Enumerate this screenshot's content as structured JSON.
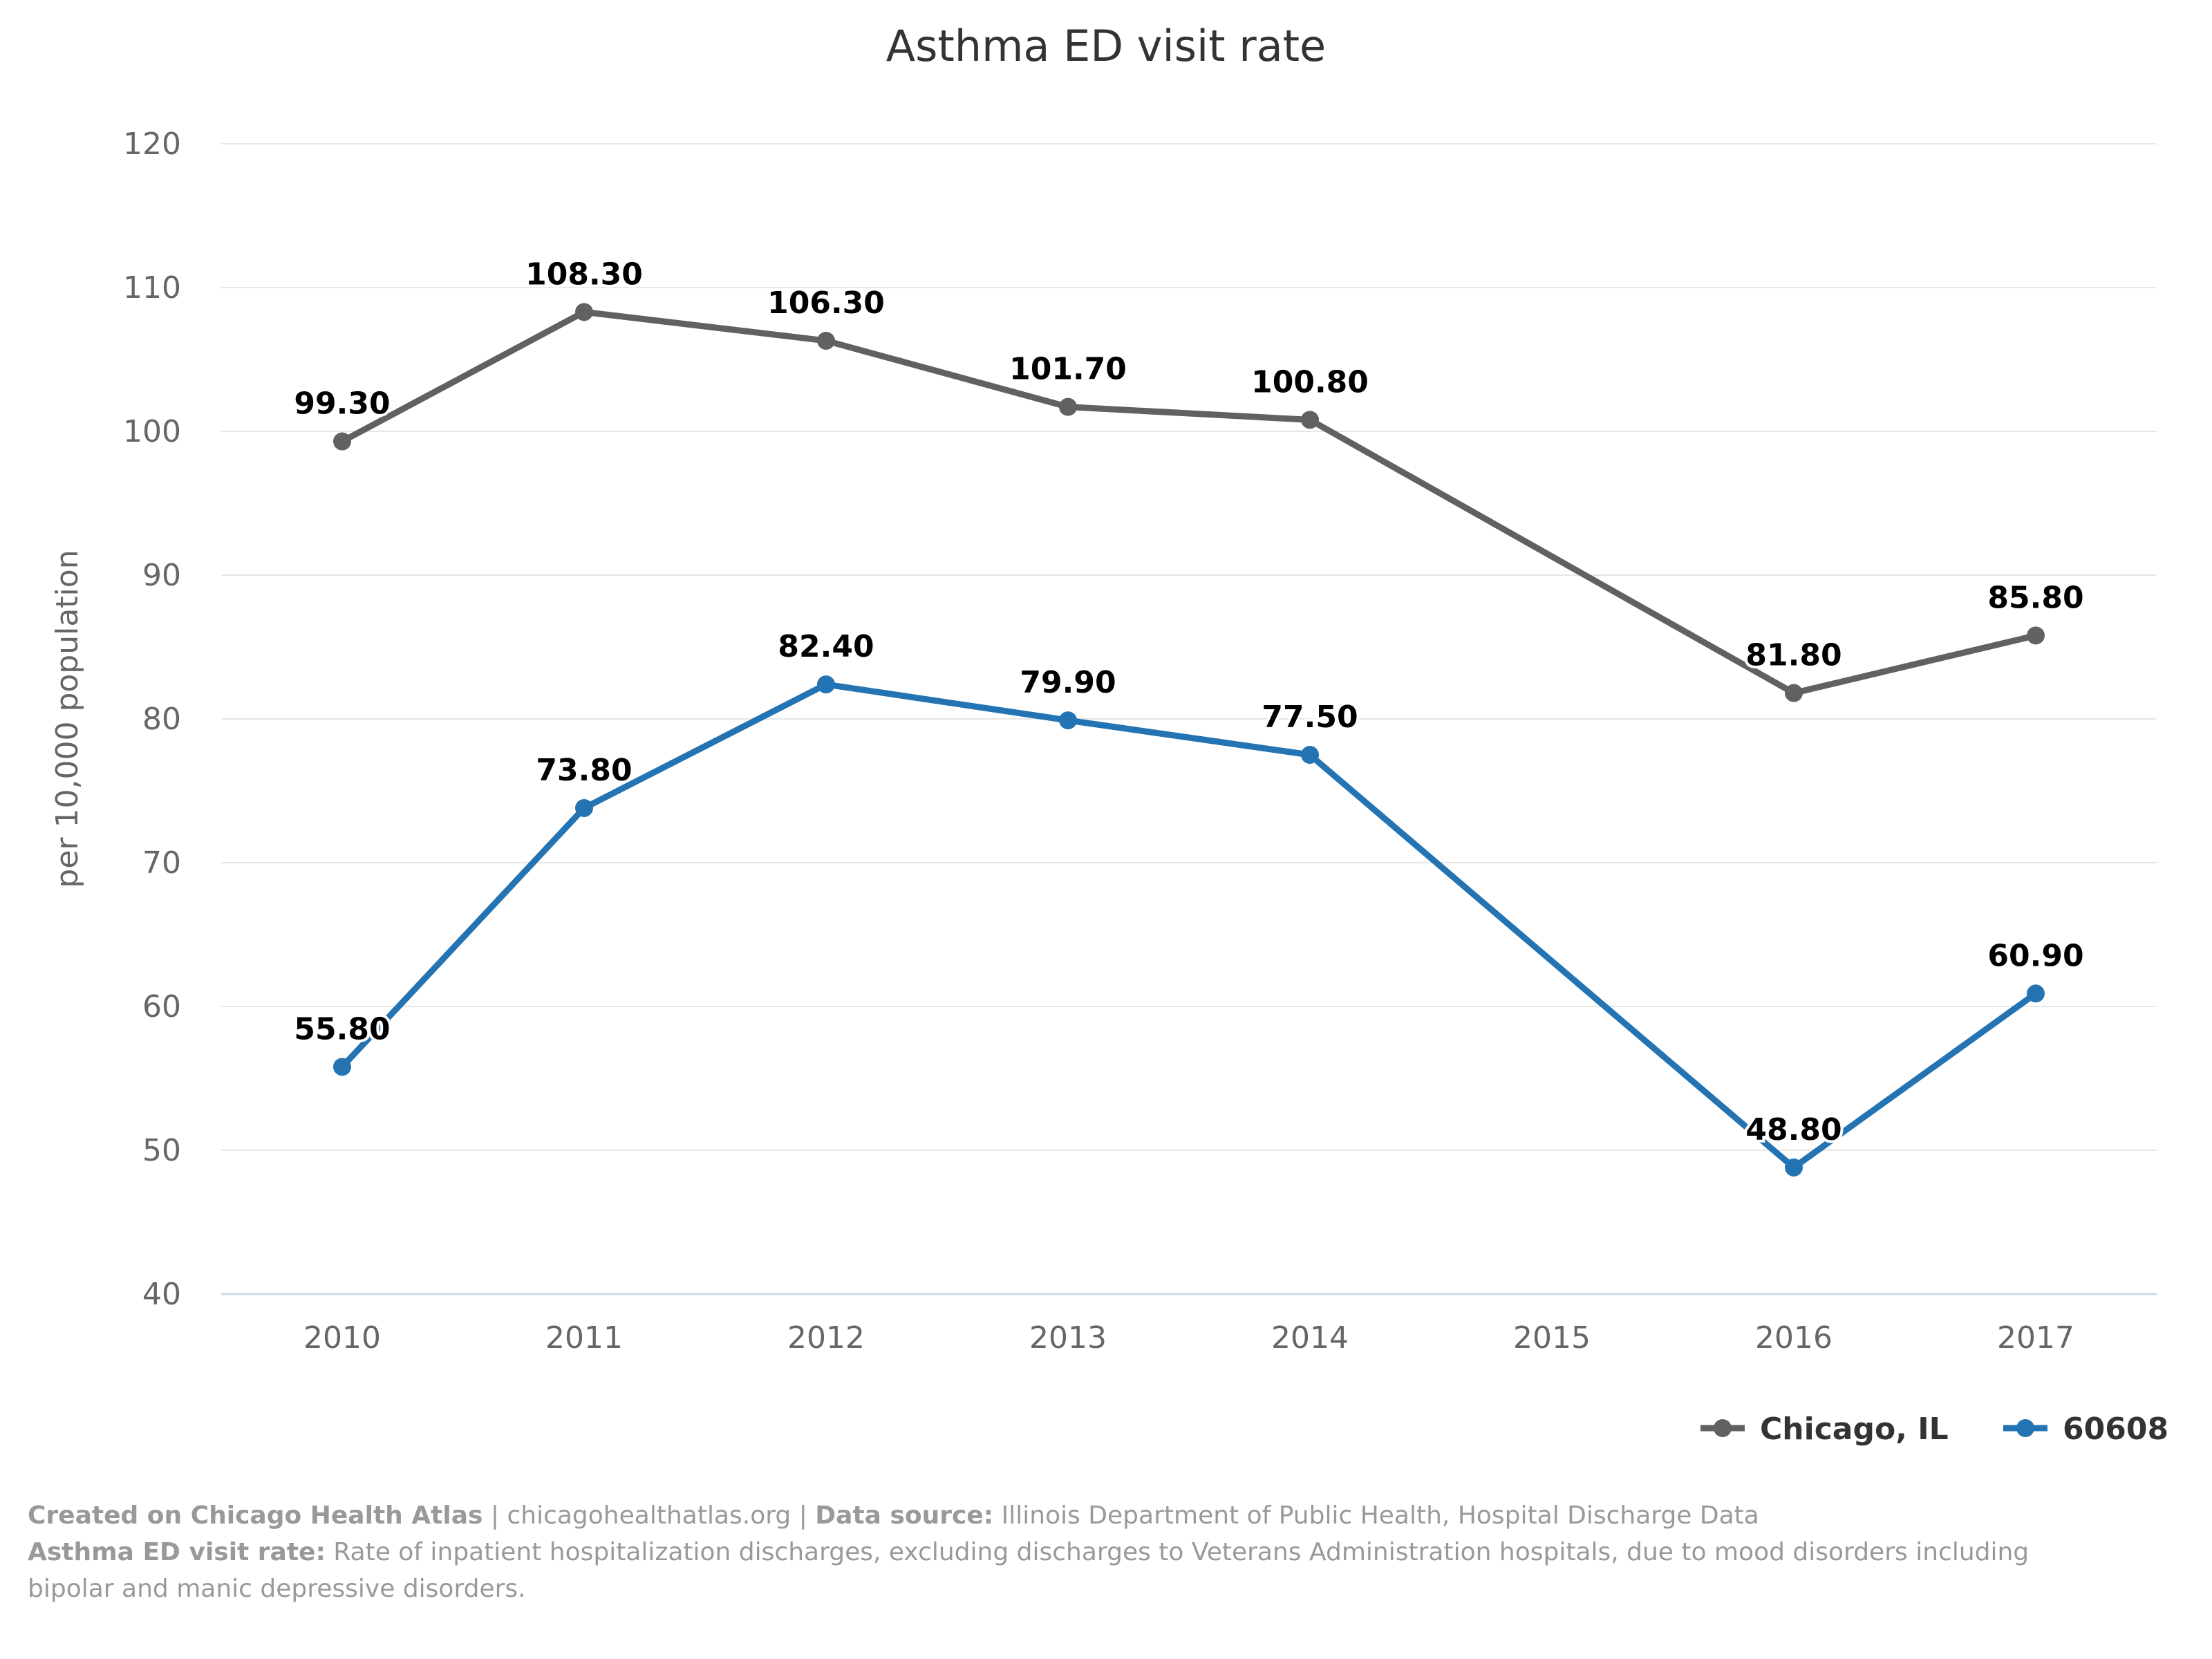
{
  "chart_data": {
    "type": "line",
    "title": "Asthma ED visit rate",
    "ylabel": "per 10,000 population",
    "xlabel": "",
    "categories": [
      "2010",
      "2011",
      "2012",
      "2013",
      "2014",
      "2015",
      "2016",
      "2017"
    ],
    "ylim": [
      40,
      120
    ],
    "yticks": [
      40,
      50,
      60,
      70,
      80,
      90,
      100,
      110,
      120
    ],
    "grid": true,
    "legend_position": "bottom-right",
    "series": [
      {
        "name": "Chicago, IL",
        "color": "#616161",
        "values": [
          99.3,
          108.3,
          106.3,
          101.7,
          100.8,
          null,
          81.8,
          85.8
        ],
        "labels": [
          "99.30",
          "108.30",
          "106.30",
          "101.70",
          "100.80",
          "",
          "81.80",
          "85.80"
        ]
      },
      {
        "name": "60608",
        "color": "#2474b3",
        "values": [
          55.8,
          73.8,
          82.4,
          79.9,
          77.5,
          null,
          48.8,
          60.9
        ],
        "labels": [
          "55.80",
          "73.80",
          "82.40",
          "79.90",
          "77.50",
          "",
          "48.80",
          "60.90"
        ]
      }
    ]
  },
  "footer": {
    "line1_bold": "Created on Chicago Health Atlas",
    "line1_text": " | chicagohealthatlas.org | ",
    "line1_bold2": "Data source:",
    "line1_text2": " Illinois Department of Public Health, Hospital Discharge Data",
    "line2_bold": "Asthma ED visit rate:",
    "line2_text": " Rate of inpatient hospitalization discharges, excluding discharges to Veterans Administration hospitals, due to mood disorders including bipolar and manic depressive disorders."
  }
}
